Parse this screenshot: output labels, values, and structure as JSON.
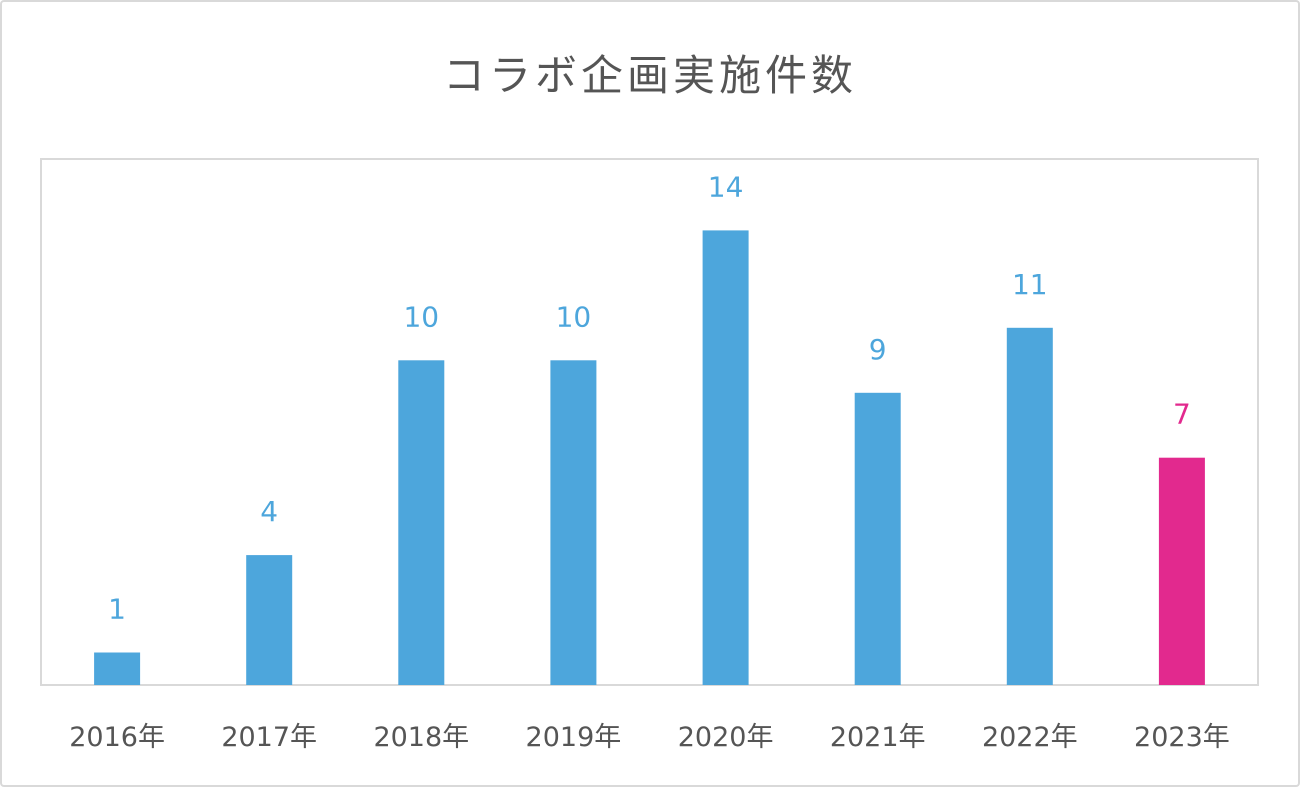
{
  "chart_data": {
    "type": "bar",
    "title": "コラボ企画実施件数",
    "xlabel": "",
    "ylabel": "",
    "categories": [
      "2016年",
      "2017年",
      "2018年",
      "2019年",
      "2020年",
      "2021年",
      "2022年",
      "2023年"
    ],
    "values": [
      1,
      4,
      10,
      10,
      14,
      9,
      11,
      7
    ],
    "data_labels": [
      "1",
      "4",
      "10",
      "10",
      "14",
      "9",
      "11",
      "7"
    ],
    "ylim": [
      0,
      16.2
    ],
    "grid": false,
    "legend": "none",
    "colors": {
      "default_bar": "#4da6dc",
      "highlight_bar": "#e2298e",
      "highlight_index": 7,
      "plot_border": "#d9d9d9",
      "tick_text": "#555555"
    }
  }
}
